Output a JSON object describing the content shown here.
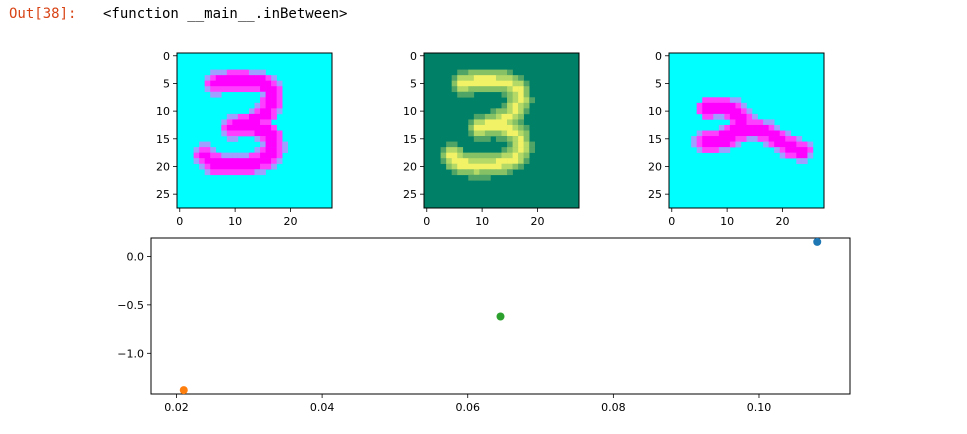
{
  "cell": {
    "prompt": "Out[38]:",
    "output_text": "<function __main__.inBetween>"
  },
  "colors": {
    "cyan_bg": "#00FFFF",
    "magenta_stroke": "#FF00FF",
    "summer_bg": "#008066",
    "series_blue": "#1f77b4",
    "series_orange": "#ff7f0e",
    "series_green": "#2ca02c"
  },
  "chart_data": [
    {
      "type": "heatmap",
      "colormap": "cool",
      "digit": "3",
      "grid_size": 28,
      "xticks": [
        0,
        10,
        20
      ],
      "yticks": [
        0,
        5,
        10,
        15,
        20,
        25
      ],
      "xlim": [
        -0.5,
        27.5
      ],
      "ylim": [
        27.5,
        -0.5
      ]
    },
    {
      "type": "heatmap",
      "colormap": "summer",
      "digit": "3",
      "grid_size": 28,
      "xticks": [
        0,
        10,
        20
      ],
      "yticks": [
        0,
        5,
        10,
        15,
        20,
        25
      ],
      "xlim": [
        -0.5,
        27.5
      ],
      "ylim": [
        27.5,
        -0.5
      ]
    },
    {
      "type": "heatmap",
      "colormap": "cool",
      "digit": "2",
      "grid_size": 28,
      "xticks": [
        0,
        10,
        20
      ],
      "yticks": [
        0,
        5,
        10,
        15,
        20,
        25
      ],
      "xlim": [
        -0.5,
        27.5
      ],
      "ylim": [
        27.5,
        -0.5
      ]
    },
    {
      "type": "scatter",
      "points": [
        {
          "x": 0.108,
          "y": 0.15,
          "color": "#1f77b4"
        },
        {
          "x": 0.021,
          "y": -1.38,
          "color": "#ff7f0e"
        },
        {
          "x": 0.0645,
          "y": -0.62,
          "color": "#2ca02c"
        }
      ],
      "xticks": [
        0.02,
        0.04,
        0.06,
        0.08,
        0.1
      ],
      "xtick_labels": [
        "0.02",
        "0.04",
        "0.06",
        "0.08",
        "0.10"
      ],
      "yticks": [
        0.0,
        -0.5,
        -1.0
      ],
      "ytick_labels": [
        "0.0",
        "−0.5",
        "−1.0"
      ],
      "xlim": [
        0.0165,
        0.1125
      ],
      "ylim": [
        -1.42,
        0.19
      ],
      "grid": false
    }
  ]
}
